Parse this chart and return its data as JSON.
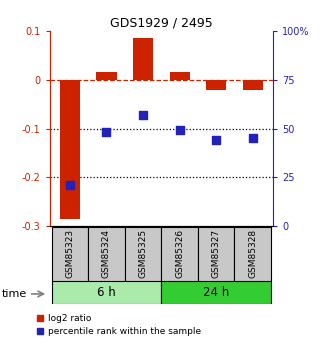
{
  "title": "GDS1929 / 2495",
  "samples": [
    "GSM85323",
    "GSM85324",
    "GSM85325",
    "GSM85326",
    "GSM85327",
    "GSM85328"
  ],
  "log2_ratio": [
    -0.285,
    0.015,
    0.085,
    0.015,
    -0.02,
    -0.02
  ],
  "percentile_rank": [
    21,
    48,
    57,
    49,
    44,
    45
  ],
  "groups": [
    {
      "label": "6 h",
      "indices": [
        0,
        1,
        2
      ],
      "color": "#AAEAAA"
    },
    {
      "label": "24 h",
      "indices": [
        3,
        4,
        5
      ],
      "color": "#33CC33"
    }
  ],
  "left_ylim": [
    -0.3,
    0.1
  ],
  "right_ylim": [
    0,
    100
  ],
  "left_yticks": [
    -0.3,
    -0.2,
    -0.1,
    0.0,
    0.1
  ],
  "right_yticks": [
    0,
    25,
    50,
    75,
    100
  ],
  "left_ytick_labels": [
    "-0.3",
    "-0.2",
    "-0.1",
    "0",
    "0.1"
  ],
  "right_ytick_labels": [
    "0",
    "25",
    "50",
    "75",
    "100%"
  ],
  "bar_color": "#CC2200",
  "dot_color": "#2222BB",
  "dotted_lines": [
    -0.1,
    -0.2
  ],
  "bg_color": "#FFFFFF",
  "legend_labels": [
    "log2 ratio",
    "percentile rank within the sample"
  ],
  "sample_box_color": "#C8C8C8"
}
